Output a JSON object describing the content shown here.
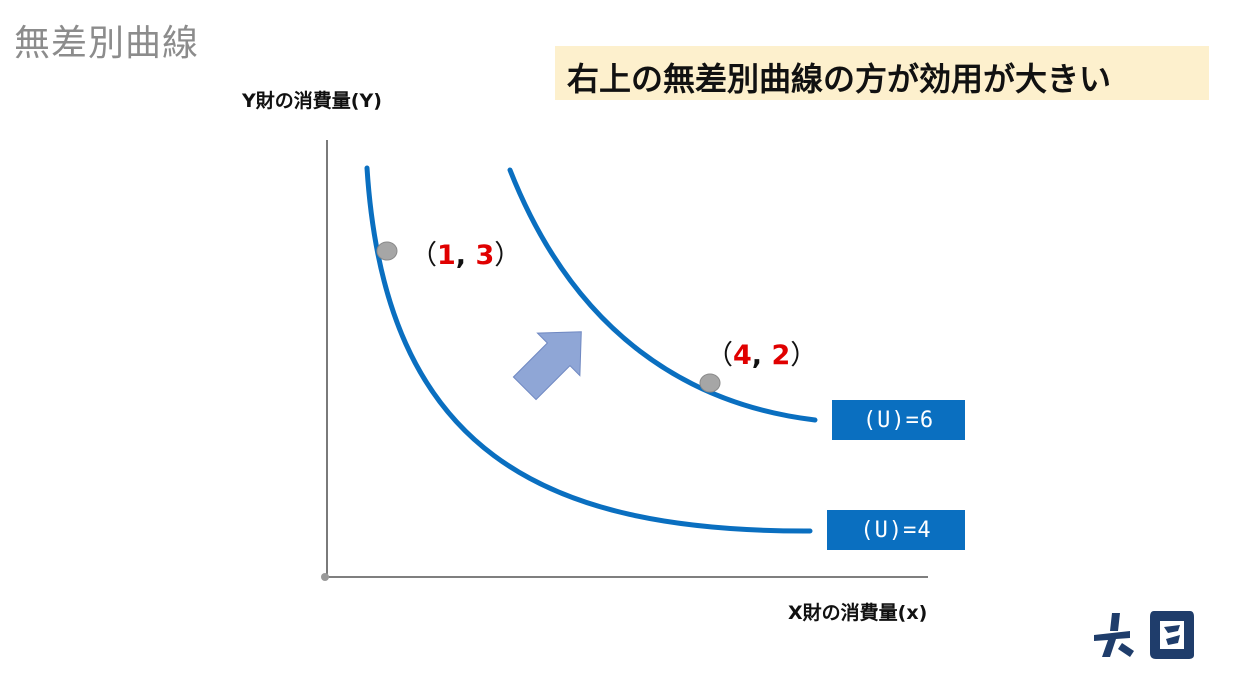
{
  "header": {
    "title": "無差別曲線",
    "headline": "右上の無差別曲線の方が効用が大きい"
  },
  "axes": {
    "y_label": "Y財の消費量(Y)",
    "x_label": "X財の消費量(x)"
  },
  "points": [
    {
      "open": "（",
      "x": "1",
      "sep": ",",
      "y": "3",
      "close": "）"
    },
    {
      "open": "（",
      "x": "4",
      "sep": ",",
      "y": "2",
      "close": "）"
    }
  ],
  "curves": [
    {
      "label": "(U)=4"
    },
    {
      "label": "(U)=6"
    }
  ],
  "colors": {
    "curve": "#0a6fc0",
    "label_box": "#0a6fc0",
    "highlight": "#e00000",
    "headline_bg": "#fdf0cd",
    "arrow": "#8fa6d6",
    "point": "#a6a6a6"
  },
  "icons": {
    "arrow": "up-right-arrow-icon",
    "logo": "brand-logo"
  }
}
